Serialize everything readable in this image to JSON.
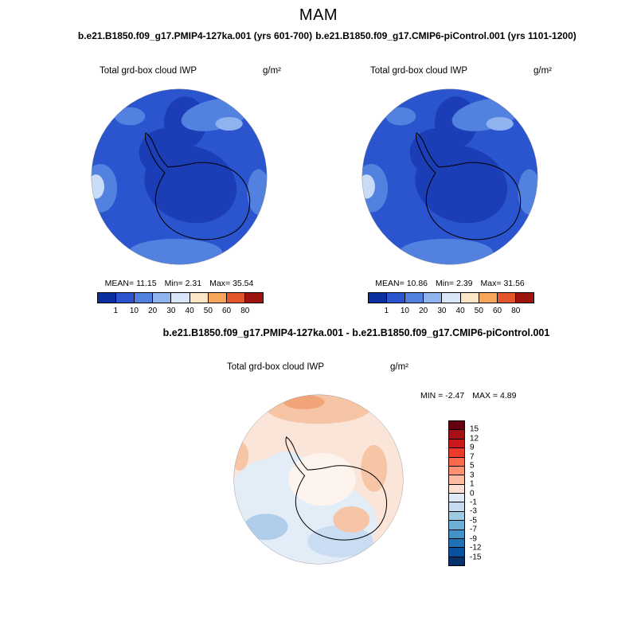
{
  "figure": {
    "title": "MAM"
  },
  "top_left_panel": {
    "title": "b.e21.B1850.f09_g17.PMIP4-127ka.001 (yrs 601-700)",
    "field_label": "Total grd-box cloud IWP",
    "units": "g/m²",
    "stats": {
      "mean_label": "MEAN=",
      "mean": "11.15",
      "min_label": "Min=",
      "min": "2.31",
      "max_label": "Max=",
      "max": "35.54"
    }
  },
  "top_right_panel": {
    "title": "b.e21.B1850.f09_g17.CMIP6-piControl.001 (yrs 1101-1200)",
    "field_label": "Total grd-box cloud IWP",
    "units": "g/m²",
    "stats": {
      "mean_label": "MEAN=",
      "mean": "10.86",
      "min_label": "Min=",
      "min": "2.39",
      "max_label": "Max=",
      "max": "31.56"
    }
  },
  "diff_panel": {
    "title": "b.e21.B1850.f09_g17.PMIP4-127ka.001 - b.e21.B1850.f09_g17.CMIP6-piControl.001",
    "field_label": "Total grd-box cloud IWP",
    "units": "g/m²",
    "stats": {
      "min_label": "MIN =",
      "min": "-2.47",
      "max_label": "MAX =",
      "max": "4.89"
    }
  },
  "colorbar_top": {
    "ticks": [
      "1",
      "10",
      "20",
      "30",
      "40",
      "50",
      "60",
      "80"
    ],
    "colors": [
      "#0b2f9e",
      "#2a55cf",
      "#5381e0",
      "#8fb3ef",
      "#d8e6f8",
      "#fbe7c6",
      "#f8a55c",
      "#e4552b",
      "#9e1510"
    ]
  },
  "colorbar_diff": {
    "ticks": [
      "15",
      "12",
      "9",
      "7",
      "5",
      "3",
      "1",
      "0",
      "-1",
      "-3",
      "-5",
      "-7",
      "-9",
      "-12",
      "-15"
    ],
    "colors": [
      "#67000d",
      "#a50f15",
      "#cb181d",
      "#ef3b2c",
      "#fb6a4a",
      "#fc9272",
      "#fcbba1",
      "#fee0d2",
      "#deebf7",
      "#c6dbef",
      "#9ecae1",
      "#6baed6",
      "#4292c6",
      "#2171b5",
      "#08519c",
      "#08306b"
    ]
  },
  "map_colors": {
    "iwp": {
      "bg": "#2a55cf",
      "dark": "#1b3db6",
      "light": "#5381e0",
      "lighter": "#8fb3ef",
      "lightest": "#c8dcf7",
      "coast": "#000000"
    },
    "diff": {
      "bg": "#fbe5d8",
      "warm": "#f6c5a5",
      "warm_strong": "#f0a478",
      "neutral": "#fdf4ee",
      "cool": "#e3edf8",
      "cool_mid": "#c9dcf1",
      "cool_strong": "#b0cdea",
      "coast": "#000000"
    }
  },
  "chart_data": [
    {
      "type": "heatmap",
      "projection": "south-polar-stereographic",
      "season": "MAM",
      "title": "b.e21.B1850.f09_g17.PMIP4-127ka.001 (yrs 601-700)",
      "variable": "Total grd-box cloud IWP",
      "units": "g/m²",
      "mean": 11.15,
      "min": 2.31,
      "max": 35.54,
      "colorbar_levels": [
        1,
        10,
        20,
        30,
        40,
        50,
        60,
        80
      ],
      "legend_position": "bottom"
    },
    {
      "type": "heatmap",
      "projection": "south-polar-stereographic",
      "season": "MAM",
      "title": "b.e21.B1850.f09_g17.CMIP6-piControl.001 (yrs 1101-1200)",
      "variable": "Total grd-box cloud IWP",
      "units": "g/m²",
      "mean": 10.86,
      "min": 2.39,
      "max": 31.56,
      "colorbar_levels": [
        1,
        10,
        20,
        30,
        40,
        50,
        60,
        80
      ],
      "legend_position": "bottom"
    },
    {
      "type": "heatmap",
      "projection": "south-polar-stereographic",
      "season": "MAM",
      "title": "b.e21.B1850.f09_g17.PMIP4-127ka.001 - b.e21.B1850.f09_g17.CMIP6-piControl.001",
      "variable": "Total grd-box cloud IWP",
      "units": "g/m²",
      "min": -2.47,
      "max": 4.89,
      "colorbar_levels": [
        15,
        12,
        9,
        7,
        5,
        3,
        1,
        0,
        -1,
        -3,
        -5,
        -7,
        -9,
        -12,
        -15
      ],
      "legend_position": "right"
    }
  ]
}
